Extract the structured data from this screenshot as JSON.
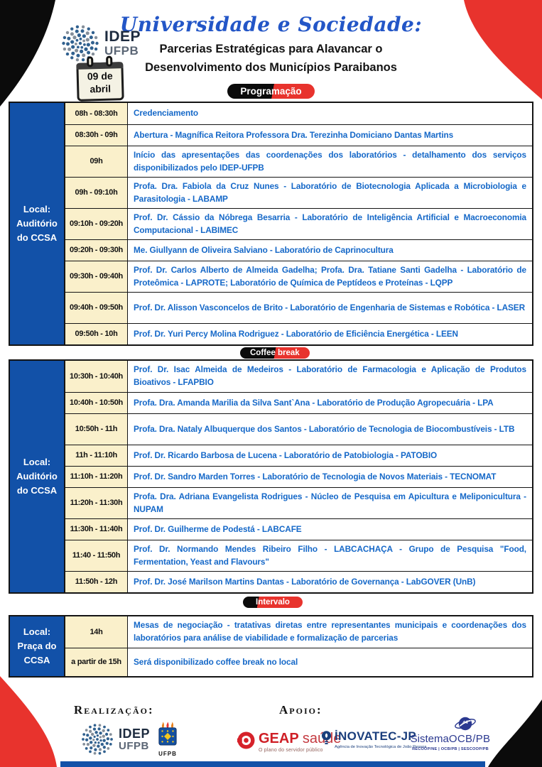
{
  "header": {
    "logo": {
      "idep": "IDEP",
      "ufpb": "UFPB"
    },
    "date_badge": {
      "line1": "09 de",
      "line2": "abril"
    },
    "title_script": "Universidade e Sociedade:",
    "subtitle_line1": "Parcerias Estratégicas para Alavancar o",
    "subtitle_line2": "Desenvolvimento dos Municípios Paraibanos",
    "program_badge": "Programação"
  },
  "colors": {
    "accent_red": "#E8332D",
    "table_blue": "#1251A8",
    "text_blue": "#1568C8",
    "time_cell_cream": "#FAF0CB",
    "title_blue": "#2356C7"
  },
  "session1": {
    "location": "Local: Auditório do CCSA",
    "rows": [
      {
        "time": "08h - 08:30h",
        "desc": "Credenciamento"
      },
      {
        "time": "08:30h - 09h",
        "desc": "Abertura - Magnífica Reitora Professora Dra. Terezinha Domiciano Dantas Martins"
      },
      {
        "time": "09h",
        "desc": "Início das apresentações das coordenações dos laboratórios - detalhamento dos serviços disponibilizados pelo IDEP-UFPB"
      },
      {
        "time": "09h - 09:10h",
        "desc": "Profa. Dra. Fabiola da Cruz Nunes - Laboratório de Biotecnologia Aplicada a Microbiologia e Parasitologia - LABAMP"
      },
      {
        "time": "09:10h - 09:20h",
        "desc": "Prof. Dr. Cássio da Nóbrega Besarria - Laboratório de Inteligência Artificial e Macroeconomia Computacional - LABIMEC"
      },
      {
        "time": "09:20h - 09:30h",
        "desc": "Me. Giullyann de Oliveira Salviano - Laboratório de Caprinocultura"
      },
      {
        "time": "09:30h - 09:40h",
        "desc": "Prof. Dr. Carlos Alberto de Almeida Gadelha; Profa. Dra. Tatiane Santi Gadelha - Laboratório de Proteômica - LAPROTE; Laboratório de Química de Peptídeos e Proteínas - LQPP"
      },
      {
        "time": "09:40h - 09:50h",
        "desc": "Prof. Dr. Alisson Vasconcelos de Brito - Laboratório de Engenharia de Sistemas e Robótica - LASER"
      },
      {
        "time": "09:50h - 10h",
        "desc": "Prof. Dr. Yuri Percy Molina Rodriguez - Laboratório de Eficiência Energética - LEEN"
      }
    ]
  },
  "coffee_badge": "Coffee break",
  "session2": {
    "location": "Local: Auditório do CCSA",
    "rows": [
      {
        "time": "10:30h - 10:40h",
        "desc": "Prof. Dr. Isac Almeida de Medeiros - Laboratório de Farmacologia e Aplicação de Produtos Bioativos - LFAPBIO"
      },
      {
        "time": "10:40h - 10:50h",
        "desc": "Profa. Dra. Amanda Marilia da Silva Sant`Ana - Laboratório de Produção Agropecuária - LPA"
      },
      {
        "time": "10:50h - 11h",
        "desc": "Profa. Dra. Nataly Albuquerque dos Santos - Laboratório de Tecnologia de Biocombustíveis - LTB"
      },
      {
        "time": "11h - 11:10h",
        "desc": "Prof. Dr. Ricardo Barbosa de Lucena - Laboratório de Patobiologia - PATOBIO"
      },
      {
        "time": "11:10h - 11:20h",
        "desc": "Prof. Dr. Sandro Marden Torres - Laboratório de Tecnologia de Novos Materiais - TECNOMAT"
      },
      {
        "time": "11:20h - 11:30h",
        "desc": "Profa. Dra. Adriana Evangelista Rodrigues - Núcleo de Pesquisa em Apicultura e Meliponicultura - NUPAM"
      },
      {
        "time": "11:30h - 11:40h",
        "desc": "Prof. Dr. Guilherme de Podestá - LABCAFE"
      },
      {
        "time": "11:40 - 11:50h",
        "desc": "Prof. Dr. Normando Mendes Ribeiro Filho - LABCACHAÇA - Grupo de Pesquisa \"Food, Fermentation, Yeast and Flavours\""
      },
      {
        "time": "11:50h - 12h",
        "desc": "Prof. Dr. José Marilson Martins Dantas - Laboratório de Governança - LabGOVER (UnB)"
      }
    ]
  },
  "interval_badge": "Intervalo",
  "session3": {
    "location": "Local: Praça do CCSA",
    "rows": [
      {
        "time": "14h",
        "desc": "Mesas de negociação - tratativas diretas entre representantes municipais e coordenações dos laboratórios para análise de viabilidade e formalização de parcerias"
      },
      {
        "time": "a partir de 15h",
        "desc": "Será disponibilizado coffee break no local"
      }
    ]
  },
  "footer": {
    "realizacao_label": "Realização:",
    "apoio_label": "Apoio:",
    "idep": "IDEP",
    "ufpb": "UFPB",
    "crest_label": "UFPB",
    "geap": {
      "name": "GEAP",
      "name2": "saúde",
      "tagline": "O plano do servidor público"
    },
    "inovatec": {
      "name": "İNOVATEC-JP",
      "tagline": "Agência de Inovação Tecnológica de João Pessoa"
    },
    "ocb": {
      "name_prefix": "Sistema",
      "name": "OCB/PB",
      "tagline": "RECOOP/NE | OCB/PB | SESCOOP/PB"
    }
  }
}
